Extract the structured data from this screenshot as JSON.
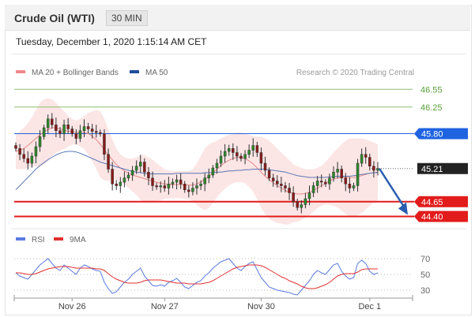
{
  "header": {
    "title": "Crude Oil (WTI)",
    "timeframe": "30 MIN"
  },
  "datetime": "Tuesday, December 1, 2020 1:15:14 AM CET",
  "credit": "Research © 2020 Trading Central",
  "chart_data": {
    "type": "line",
    "legend": [
      {
        "name": "MA 20 + Bollinger Bands",
        "color": "#f08a8a"
      },
      {
        "name": "MA 50",
        "color": "#1f4e99"
      }
    ],
    "ylim": [
      44.3,
      46.7
    ],
    "price_levels": [
      {
        "value": 46.55,
        "label": "46.55",
        "kind": "target",
        "color": "#8dc26f"
      },
      {
        "value": 46.25,
        "label": "46.25",
        "kind": "target",
        "color": "#8dc26f"
      },
      {
        "value": 45.8,
        "label": "45.80",
        "kind": "resistance",
        "color": "#1f63e0"
      },
      {
        "value": 45.21,
        "label": "45.21",
        "kind": "last",
        "color": "#222222"
      },
      {
        "value": 44.65,
        "label": "44.65",
        "kind": "support",
        "color": "#e21b1b"
      },
      {
        "value": 44.4,
        "label": "44.40",
        "kind": "support",
        "color": "#e21b1b"
      }
    ],
    "x_ticks": [
      "Nov 26",
      "Nov 27",
      "Nov 30",
      "Dec 1"
    ],
    "close": [
      45.55,
      45.45,
      45.38,
      45.3,
      45.42,
      45.58,
      45.75,
      45.9,
      46.05,
      45.95,
      45.85,
      45.8,
      45.95,
      45.88,
      45.8,
      45.72,
      45.85,
      45.92,
      45.88,
      45.84,
      45.82,
      45.8,
      45.45,
      45.2,
      44.95,
      44.92,
      44.98,
      45.05,
      45.1,
      45.18,
      45.25,
      45.32,
      45.15,
      45.05,
      44.92,
      44.9,
      44.92,
      44.88,
      44.95,
      44.98,
      45.02,
      44.95,
      44.85,
      44.82,
      44.88,
      44.92,
      44.95,
      45.05,
      45.1,
      45.22,
      45.3,
      45.42,
      45.5,
      45.55,
      45.48,
      45.42,
      45.38,
      45.45,
      45.52,
      45.6,
      45.48,
      45.3,
      45.18,
      45.05,
      45.0,
      44.95,
      44.92,
      44.88,
      44.8,
      44.65,
      44.55,
      44.6,
      44.7,
      44.8,
      44.92,
      45.0,
      44.98,
      44.95,
      45.05,
      45.15,
      45.2,
      45.05,
      44.95,
      44.88,
      44.92,
      45.3,
      45.45,
      45.4,
      45.25,
      45.18,
      45.21
    ],
    "ma50": [
      44.85,
      44.92,
      44.99,
      45.06,
      45.13,
      45.2,
      45.26,
      45.31,
      45.36,
      45.4,
      45.44,
      45.47,
      45.49,
      45.5,
      45.5,
      45.49,
      45.47,
      45.44,
      45.41,
      45.38,
      45.35,
      45.32,
      45.3,
      45.28,
      45.26,
      45.24,
      45.22,
      45.2,
      45.18,
      45.16,
      45.15,
      45.14,
      45.13,
      45.12,
      45.12,
      45.12,
      45.12,
      45.12,
      45.12,
      45.12,
      45.13,
      45.13,
      45.13,
      45.13,
      45.13,
      45.13,
      45.13,
      45.14,
      45.14,
      45.14,
      45.15,
      45.15,
      45.16,
      45.17,
      45.17,
      45.18,
      45.18,
      45.19,
      45.19,
      45.2,
      45.2,
      45.2,
      45.2,
      45.19,
      45.18,
      45.17,
      45.16,
      45.15,
      45.13,
      45.11,
      45.09,
      45.08,
      45.07,
      45.06,
      45.06,
      45.06,
      45.06,
      45.06,
      45.07,
      45.07,
      45.08,
      45.08,
      45.08,
      45.08,
      45.09,
      45.1,
      45.11,
      45.12,
      45.13,
      45.14,
      45.14
    ],
    "bb_mid": [
      45.5,
      45.52,
      45.55,
      45.6,
      45.66,
      45.72,
      45.78,
      45.83,
      45.87,
      45.9,
      45.9,
      45.88,
      45.86,
      45.84,
      45.83,
      45.82,
      45.82,
      45.82,
      45.8,
      45.76,
      45.7,
      45.62,
      45.53,
      45.44,
      45.36,
      45.28,
      45.22,
      45.17,
      45.13,
      45.1,
      45.08,
      45.06,
      45.04,
      45.02,
      45.0,
      44.98,
      44.96,
      44.95,
      44.94,
      44.94,
      44.94,
      44.94,
      44.93,
      44.93,
      44.93,
      44.95,
      44.98,
      45.03,
      45.08,
      45.14,
      45.2,
      45.26,
      45.31,
      45.35,
      45.38,
      45.4,
      45.4,
      45.38,
      45.34,
      45.29,
      45.22,
      45.15,
      45.08,
      45.02,
      44.97,
      44.92,
      44.88,
      44.84,
      44.81,
      44.79,
      44.78,
      44.78,
      44.79,
      44.81,
      44.84,
      44.88,
      44.92,
      44.96,
      45.0,
      45.03,
      45.05,
      45.06,
      45.06,
      45.06,
      45.06,
      45.07,
      45.09,
      45.11,
      45.13,
      45.14,
      45.15
    ],
    "bb_upper": [
      45.8,
      45.84,
      45.9,
      45.98,
      46.08,
      46.2,
      46.32,
      46.38,
      46.4,
      46.38,
      46.32,
      46.25,
      46.18,
      46.1,
      46.05,
      46.02,
      46.05,
      46.1,
      46.15,
      46.18,
      46.2,
      46.18,
      46.05,
      45.88,
      45.7,
      45.55,
      45.45,
      45.4,
      45.38,
      45.38,
      45.4,
      45.44,
      45.44,
      45.4,
      45.36,
      45.3,
      45.25,
      45.2,
      45.18,
      45.17,
      45.17,
      45.17,
      45.17,
      45.17,
      45.2,
      45.3,
      45.42,
      45.55,
      45.62,
      45.65,
      45.68,
      45.72,
      45.75,
      45.78,
      45.8,
      45.82,
      45.82,
      45.8,
      45.78,
      45.76,
      45.75,
      45.75,
      45.72,
      45.68,
      45.62,
      45.55,
      45.48,
      45.42,
      45.35,
      45.28,
      45.25,
      45.22,
      45.2,
      45.2,
      45.2,
      45.22,
      45.26,
      45.32,
      45.4,
      45.48,
      45.55,
      45.62,
      45.68,
      45.72,
      45.72,
      45.72,
      45.72,
      45.7,
      45.68,
      45.65,
      45.62
    ],
    "bb_lower": [
      45.2,
      45.2,
      45.2,
      45.22,
      45.24,
      45.24,
      45.24,
      45.28,
      45.34,
      45.42,
      45.48,
      45.51,
      45.54,
      45.58,
      45.61,
      45.62,
      45.59,
      45.54,
      45.45,
      45.34,
      45.2,
      45.06,
      45.01,
      45.0,
      45.02,
      45.01,
      44.99,
      44.94,
      44.88,
      44.82,
      44.76,
      44.68,
      44.64,
      44.64,
      44.64,
      44.66,
      44.67,
      44.7,
      44.7,
      44.71,
      44.71,
      44.71,
      44.69,
      44.69,
      44.66,
      44.6,
      44.54,
      44.51,
      44.54,
      44.63,
      44.72,
      44.8,
      44.87,
      44.92,
      44.96,
      44.98,
      44.98,
      44.96,
      44.9,
      44.82,
      44.69,
      44.55,
      44.44,
      44.36,
      44.32,
      44.29,
      44.28,
      44.26,
      44.27,
      44.3,
      44.31,
      44.34,
      44.38,
      44.42,
      44.48,
      44.54,
      44.58,
      44.6,
      44.6,
      44.58,
      44.55,
      44.5,
      44.44,
      44.4,
      44.4,
      44.42,
      44.46,
      44.52,
      44.58,
      44.63,
      44.68
    ],
    "forecast_arrow": {
      "from": 45.21,
      "to": 44.4
    },
    "rsi": {
      "legend": [
        {
          "name": "RSI",
          "color": "#5b7be0"
        },
        {
          "name": "9MA",
          "color": "#e03030"
        }
      ],
      "ylim": [
        20,
        80
      ],
      "ticks": [
        70,
        50,
        30
      ],
      "rsi": [
        52,
        48,
        46,
        44,
        50,
        56,
        62,
        66,
        70,
        64,
        58,
        55,
        62,
        58,
        54,
        50,
        58,
        62,
        60,
        57,
        55,
        54,
        40,
        32,
        26,
        28,
        34,
        40,
        44,
        50,
        54,
        58,
        48,
        42,
        36,
        35,
        37,
        35,
        40,
        42,
        45,
        40,
        34,
        32,
        36,
        40,
        42,
        48,
        52,
        58,
        62,
        66,
        68,
        70,
        64,
        58,
        55,
        60,
        64,
        66,
        56,
        46,
        40,
        34,
        32,
        30,
        29,
        28,
        27,
        25,
        24,
        30,
        36,
        42,
        50,
        55,
        52,
        50,
        56,
        62,
        64,
        54,
        48,
        44,
        46,
        64,
        68,
        64,
        54,
        50,
        52
      ],
      "ma9": [
        52,
        52,
        51,
        50,
        50,
        51,
        53,
        55,
        57,
        58,
        59,
        60,
        60,
        60,
        59,
        58,
        58,
        58,
        58,
        58,
        57,
        57,
        55,
        51,
        47,
        44,
        42,
        40,
        39,
        39,
        39,
        40,
        42,
        43,
        43,
        43,
        43,
        42,
        41,
        40,
        39,
        39,
        39,
        38,
        38,
        38,
        38,
        39,
        40,
        42,
        45,
        48,
        51,
        54,
        57,
        59,
        60,
        61,
        62,
        62,
        62,
        61,
        59,
        56,
        53,
        50,
        47,
        45,
        42,
        40,
        38,
        35,
        33,
        32,
        32,
        33,
        35,
        37,
        40,
        44,
        48,
        50,
        51,
        51,
        51,
        53,
        56,
        57,
        57,
        57,
        57
      ]
    }
  }
}
